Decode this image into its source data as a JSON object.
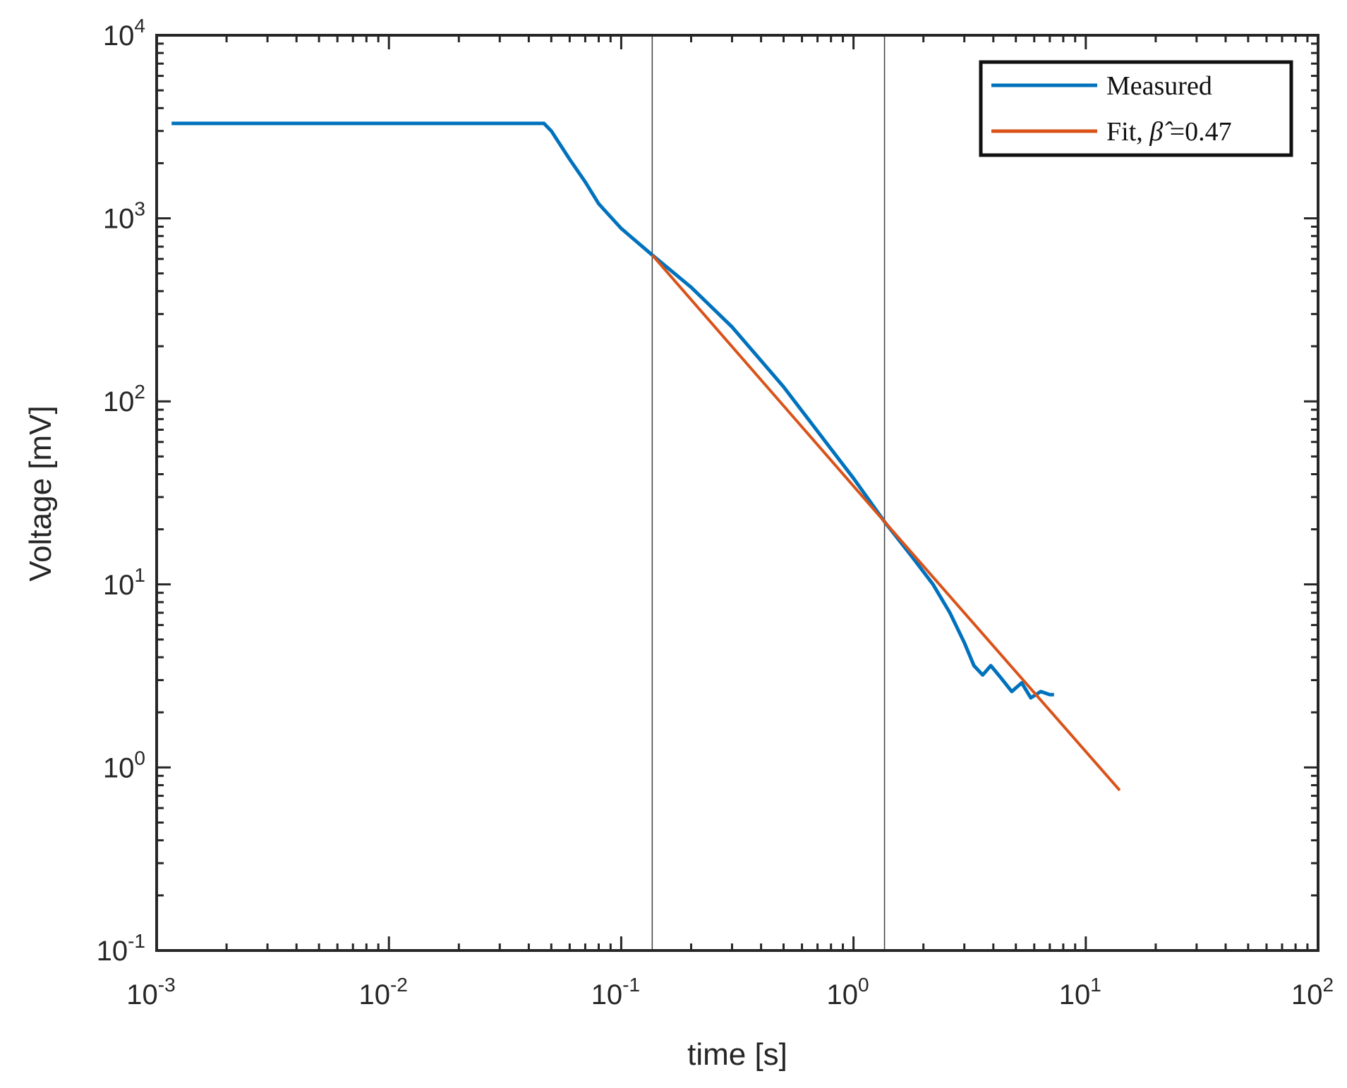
{
  "chart_data": {
    "type": "line",
    "xscale": "log",
    "yscale": "log",
    "xlabel": "time [s]",
    "ylabel": "Voltage [mV]",
    "xlim": [
      0.001,
      100
    ],
    "ylim": [
      0.1,
      10000
    ],
    "x_tick_labels": [
      {
        "base": "10",
        "exp": "-3",
        "value": 0.001
      },
      {
        "base": "10",
        "exp": "-2",
        "value": 0.01
      },
      {
        "base": "10",
        "exp": "-1",
        "value": 0.1
      },
      {
        "base": "10",
        "exp": "0",
        "value": 1
      },
      {
        "base": "10",
        "exp": "1",
        "value": 10
      },
      {
        "base": "10",
        "exp": "2",
        "value": 100
      }
    ],
    "y_tick_labels": [
      {
        "base": "10",
        "exp": "-1",
        "value": 0.1
      },
      {
        "base": "10",
        "exp": "0",
        "value": 1
      },
      {
        "base": "10",
        "exp": "1",
        "value": 10
      },
      {
        "base": "10",
        "exp": "2",
        "value": 100
      },
      {
        "base": "10",
        "exp": "3",
        "value": 1000
      },
      {
        "base": "10",
        "exp": "4",
        "value": 10000
      }
    ],
    "grid": false,
    "legend_position": "top-right",
    "vertical_lines": [
      0.136,
      1.36
    ],
    "series": [
      {
        "name": "Measured",
        "color": "#0072BD",
        "points": [
          [
            0.00116,
            3300
          ],
          [
            0.005,
            3300
          ],
          [
            0.02,
            3300
          ],
          [
            0.0465,
            3300
          ],
          [
            0.05,
            3000
          ],
          [
            0.06,
            2100
          ],
          [
            0.07,
            1580
          ],
          [
            0.08,
            1200
          ],
          [
            0.1,
            880
          ],
          [
            0.136,
            630
          ],
          [
            0.2,
            420
          ],
          [
            0.3,
            255
          ],
          [
            0.5,
            120
          ],
          [
            0.8,
            55
          ],
          [
            1.0,
            38
          ],
          [
            1.36,
            22
          ],
          [
            1.8,
            14
          ],
          [
            2.2,
            10
          ],
          [
            2.6,
            7
          ],
          [
            3.0,
            4.8
          ],
          [
            3.3,
            3.6
          ],
          [
            3.6,
            3.2
          ],
          [
            3.9,
            3.6
          ],
          [
            4.3,
            3.1
          ],
          [
            4.8,
            2.6
          ],
          [
            5.3,
            2.9
          ],
          [
            5.8,
            2.4
          ],
          [
            6.4,
            2.6
          ],
          [
            7.0,
            2.5
          ],
          [
            7.3,
            2.5
          ]
        ]
      },
      {
        "name": "Fit, β̂ =0.47",
        "color": "#D95319",
        "points": [
          [
            0.136,
            630
          ],
          [
            1.36,
            22
          ],
          [
            14,
            0.75
          ]
        ]
      }
    ]
  },
  "legend": {
    "measured_label": "Measured",
    "fit_label_prefix": "Fit, ",
    "fit_beta_symbol": "β̂",
    "fit_label_suffix": " =0.47"
  }
}
